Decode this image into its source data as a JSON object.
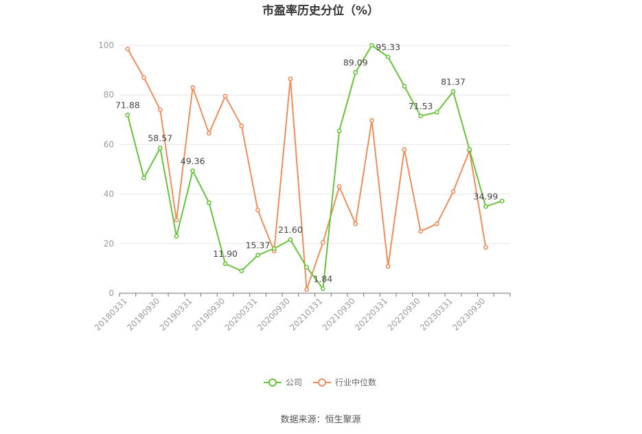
{
  "chart_data": {
    "type": "line",
    "title": "市盈率历史分位（%）",
    "source": "数据来源：恒生聚源",
    "xlabel": "",
    "ylabel": "",
    "ylim": [
      0,
      100
    ],
    "yticks": [
      0,
      20,
      40,
      60,
      80,
      100
    ],
    "grid": true,
    "legend_position": "bottom",
    "x": [
      "20180331",
      "20180630",
      "20180930",
      "20181231",
      "20190331",
      "20190630",
      "20190930",
      "20191231",
      "20200331",
      "20200630",
      "20200930",
      "20201231",
      "20210331",
      "20210630",
      "20210930",
      "20211231",
      "20220331",
      "20220630",
      "20220930",
      "20221231",
      "20230331",
      "20230630",
      "20230930",
      "20231231"
    ],
    "x_tick_labels": [
      "20180331",
      "20180930",
      "20190331",
      "20190930",
      "20200331",
      "20200930",
      "20210331",
      "20210930",
      "20220331",
      "20220930",
      "20230331",
      "20230930"
    ],
    "series": [
      {
        "name": "公司",
        "color": "#67c23a",
        "values": [
          71.88,
          46.5,
          58.57,
          23.0,
          49.36,
          36.5,
          11.9,
          9.0,
          15.37,
          18.0,
          21.6,
          10.5,
          1.84,
          65.5,
          89.09,
          100.0,
          95.33,
          83.5,
          71.53,
          73.0,
          81.37,
          58.0,
          34.99,
          37.2
        ],
        "labeled_points": [
          {
            "index": 0,
            "text": "71.88"
          },
          {
            "index": 2,
            "text": "58.57"
          },
          {
            "index": 4,
            "text": "49.36"
          },
          {
            "index": 6,
            "text": "11.90"
          },
          {
            "index": 8,
            "text": "15.37"
          },
          {
            "index": 10,
            "text": "21.60"
          },
          {
            "index": 12,
            "text": "1.84"
          },
          {
            "index": 14,
            "text": "89.09"
          },
          {
            "index": 16,
            "text": "95.33"
          },
          {
            "index": 18,
            "text": "71.53"
          },
          {
            "index": 20,
            "text": "81.37"
          },
          {
            "index": 22,
            "text": "34.99"
          }
        ]
      },
      {
        "name": "行业中位数",
        "color": "#f08c5a",
        "values": [
          98.5,
          87.0,
          74.0,
          29.5,
          83.0,
          64.5,
          79.5,
          67.5,
          33.5,
          17.0,
          86.5,
          1.5,
          20.5,
          43.0,
          28.0,
          69.7,
          10.8,
          58.0,
          25.0,
          28.0,
          41.0,
          57.5,
          18.5,
          null
        ],
        "labeled_points": []
      }
    ]
  }
}
